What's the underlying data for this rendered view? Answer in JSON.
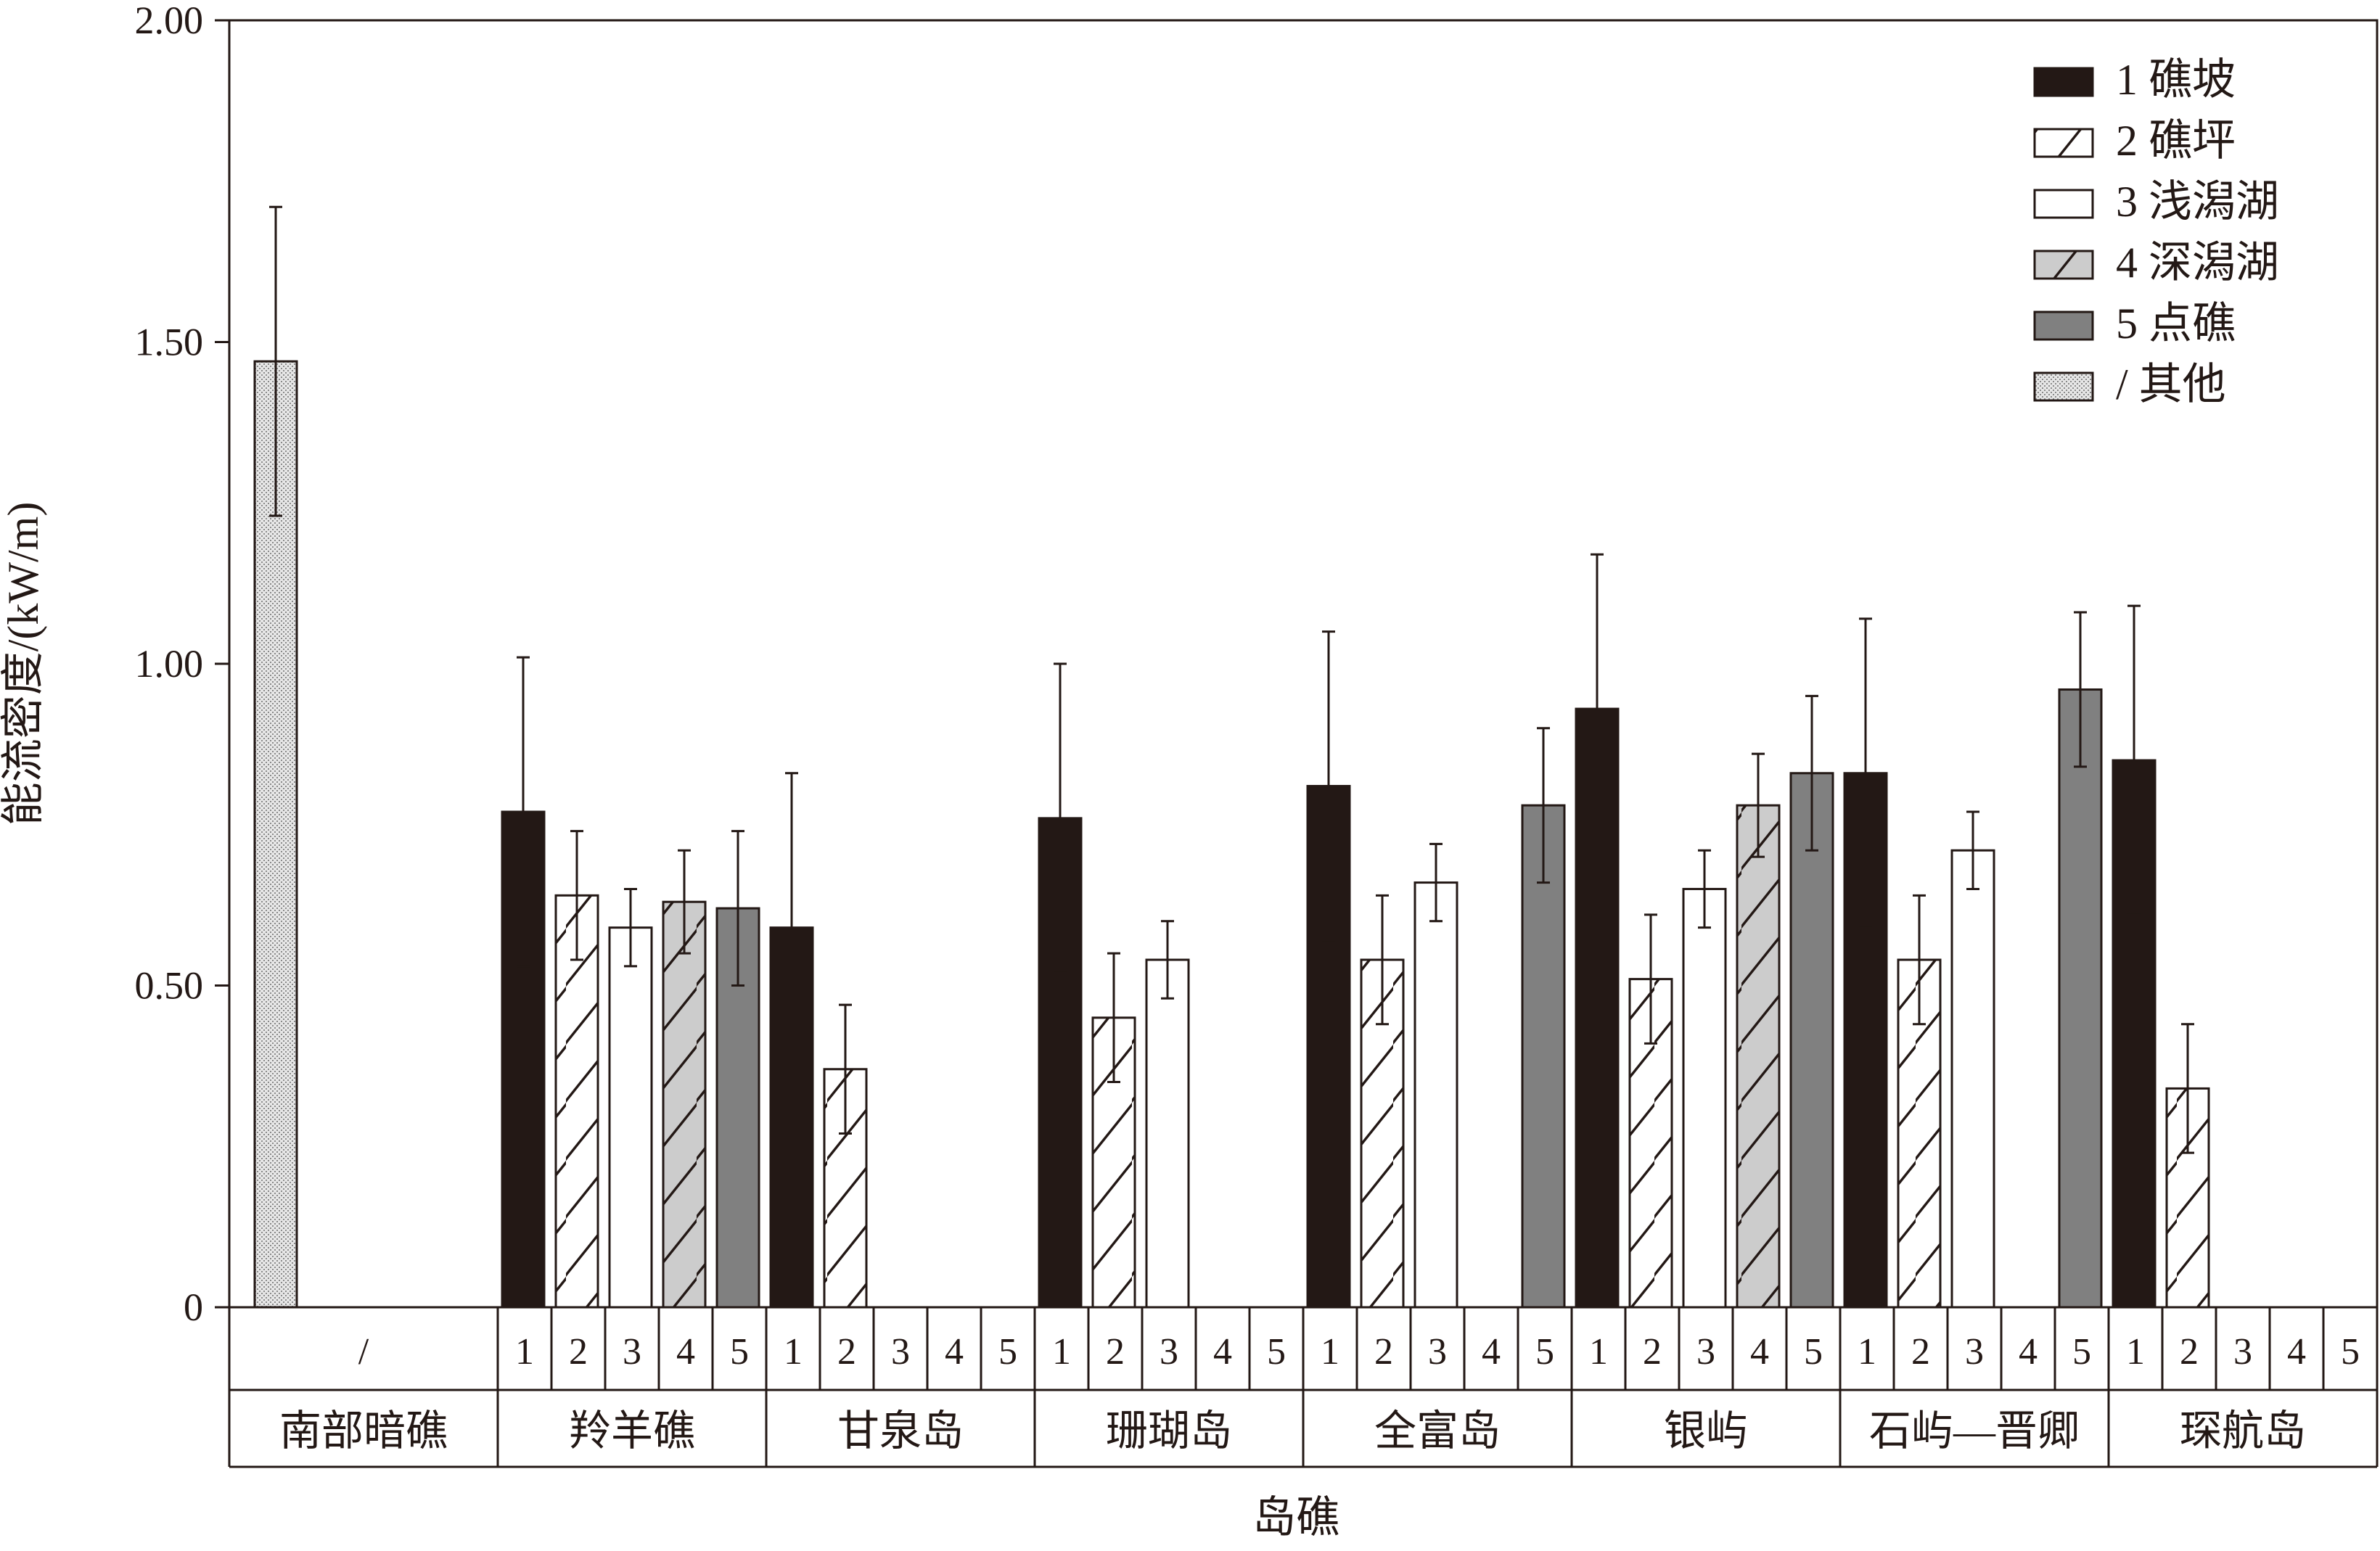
{
  "colors": {
    "ink": "#231815",
    "dark_gray": "#808080",
    "light_gray": "#cccccc",
    "white": "#ffffff"
  },
  "chart_data": {
    "type": "bar",
    "title": "",
    "xlabel": "岛礁",
    "ylabel": "能流密度/(kW/m)",
    "ylim": [
      0,
      2.0
    ],
    "yticks": [
      "0",
      "0.50",
      "1.00",
      "1.50",
      "2.00"
    ],
    "ytick_values": [
      0,
      0.5,
      1.0,
      1.5,
      2.0
    ],
    "grid": false,
    "legend_position": "top-right",
    "legend": [
      {
        "key": "1",
        "label": "1 礁坡",
        "pattern": "solid-black"
      },
      {
        "key": "2",
        "label": "2 礁坪",
        "pattern": "white-diagonal"
      },
      {
        "key": "3",
        "label": "3 浅潟湖",
        "pattern": "white"
      },
      {
        "key": "4",
        "label": "4 深潟湖",
        "pattern": "gray-diagonal"
      },
      {
        "key": "5",
        "label": "5 点礁",
        "pattern": "dark-gray"
      },
      {
        "key": "/",
        "label": "/ 其他",
        "pattern": "dotted"
      }
    ],
    "groups": [
      {
        "name": "南部暗礁",
        "categories": [
          "/"
        ],
        "bars": [
          {
            "cat": "/",
            "value": 1.47,
            "err": 0.24
          }
        ]
      },
      {
        "name": "羚羊礁",
        "categories": [
          "1",
          "2",
          "3",
          "4",
          "5"
        ],
        "bars": [
          {
            "cat": "1",
            "value": 0.77,
            "err": 0.24
          },
          {
            "cat": "2",
            "value": 0.64,
            "err": 0.1
          },
          {
            "cat": "3",
            "value": 0.59,
            "err": 0.06
          },
          {
            "cat": "4",
            "value": 0.63,
            "err": 0.08
          },
          {
            "cat": "5",
            "value": 0.62,
            "err": 0.12
          }
        ]
      },
      {
        "name": "甘泉岛",
        "categories": [
          "1",
          "2",
          "3",
          "4",
          "5"
        ],
        "bars": [
          {
            "cat": "1",
            "value": 0.59,
            "err": 0.24
          },
          {
            "cat": "2",
            "value": 0.37,
            "err": 0.1
          }
        ]
      },
      {
        "name": "珊瑚岛",
        "categories": [
          "1",
          "2",
          "3",
          "4",
          "5"
        ],
        "bars": [
          {
            "cat": "1",
            "value": 0.76,
            "err": 0.24
          },
          {
            "cat": "2",
            "value": 0.45,
            "err": 0.1
          },
          {
            "cat": "3",
            "value": 0.54,
            "err": 0.06
          }
        ]
      },
      {
        "name": "全富岛",
        "categories": [
          "1",
          "2",
          "3",
          "4",
          "5"
        ],
        "bars": [
          {
            "cat": "1",
            "value": 0.81,
            "err": 0.24
          },
          {
            "cat": "2",
            "value": 0.54,
            "err": 0.1
          },
          {
            "cat": "3",
            "value": 0.66,
            "err": 0.06
          },
          {
            "cat": "5",
            "value": 0.78,
            "err": 0.12
          }
        ]
      },
      {
        "name": "银屿",
        "categories": [
          "1",
          "2",
          "3",
          "4",
          "5"
        ],
        "bars": [
          {
            "cat": "1",
            "value": 0.93,
            "err": 0.24
          },
          {
            "cat": "2",
            "value": 0.51,
            "err": 0.1
          },
          {
            "cat": "3",
            "value": 0.65,
            "err": 0.06
          },
          {
            "cat": "4",
            "value": 0.78,
            "err": 0.08
          },
          {
            "cat": "5",
            "value": 0.83,
            "err": 0.12
          }
        ]
      },
      {
        "name": "石屿—晋卿",
        "categories": [
          "1",
          "2",
          "3",
          "4",
          "5"
        ],
        "bars": [
          {
            "cat": "1",
            "value": 0.83,
            "err": 0.24
          },
          {
            "cat": "2",
            "value": 0.54,
            "err": 0.1
          },
          {
            "cat": "3",
            "value": 0.71,
            "err": 0.06
          },
          {
            "cat": "5",
            "value": 0.96,
            "err": 0.12
          }
        ]
      },
      {
        "name": "琛航岛",
        "categories": [
          "1",
          "2",
          "3",
          "4",
          "5"
        ],
        "bars": [
          {
            "cat": "1",
            "value": 0.85,
            "err": 0.24
          },
          {
            "cat": "2",
            "value": 0.34,
            "err": 0.1
          }
        ]
      }
    ]
  }
}
